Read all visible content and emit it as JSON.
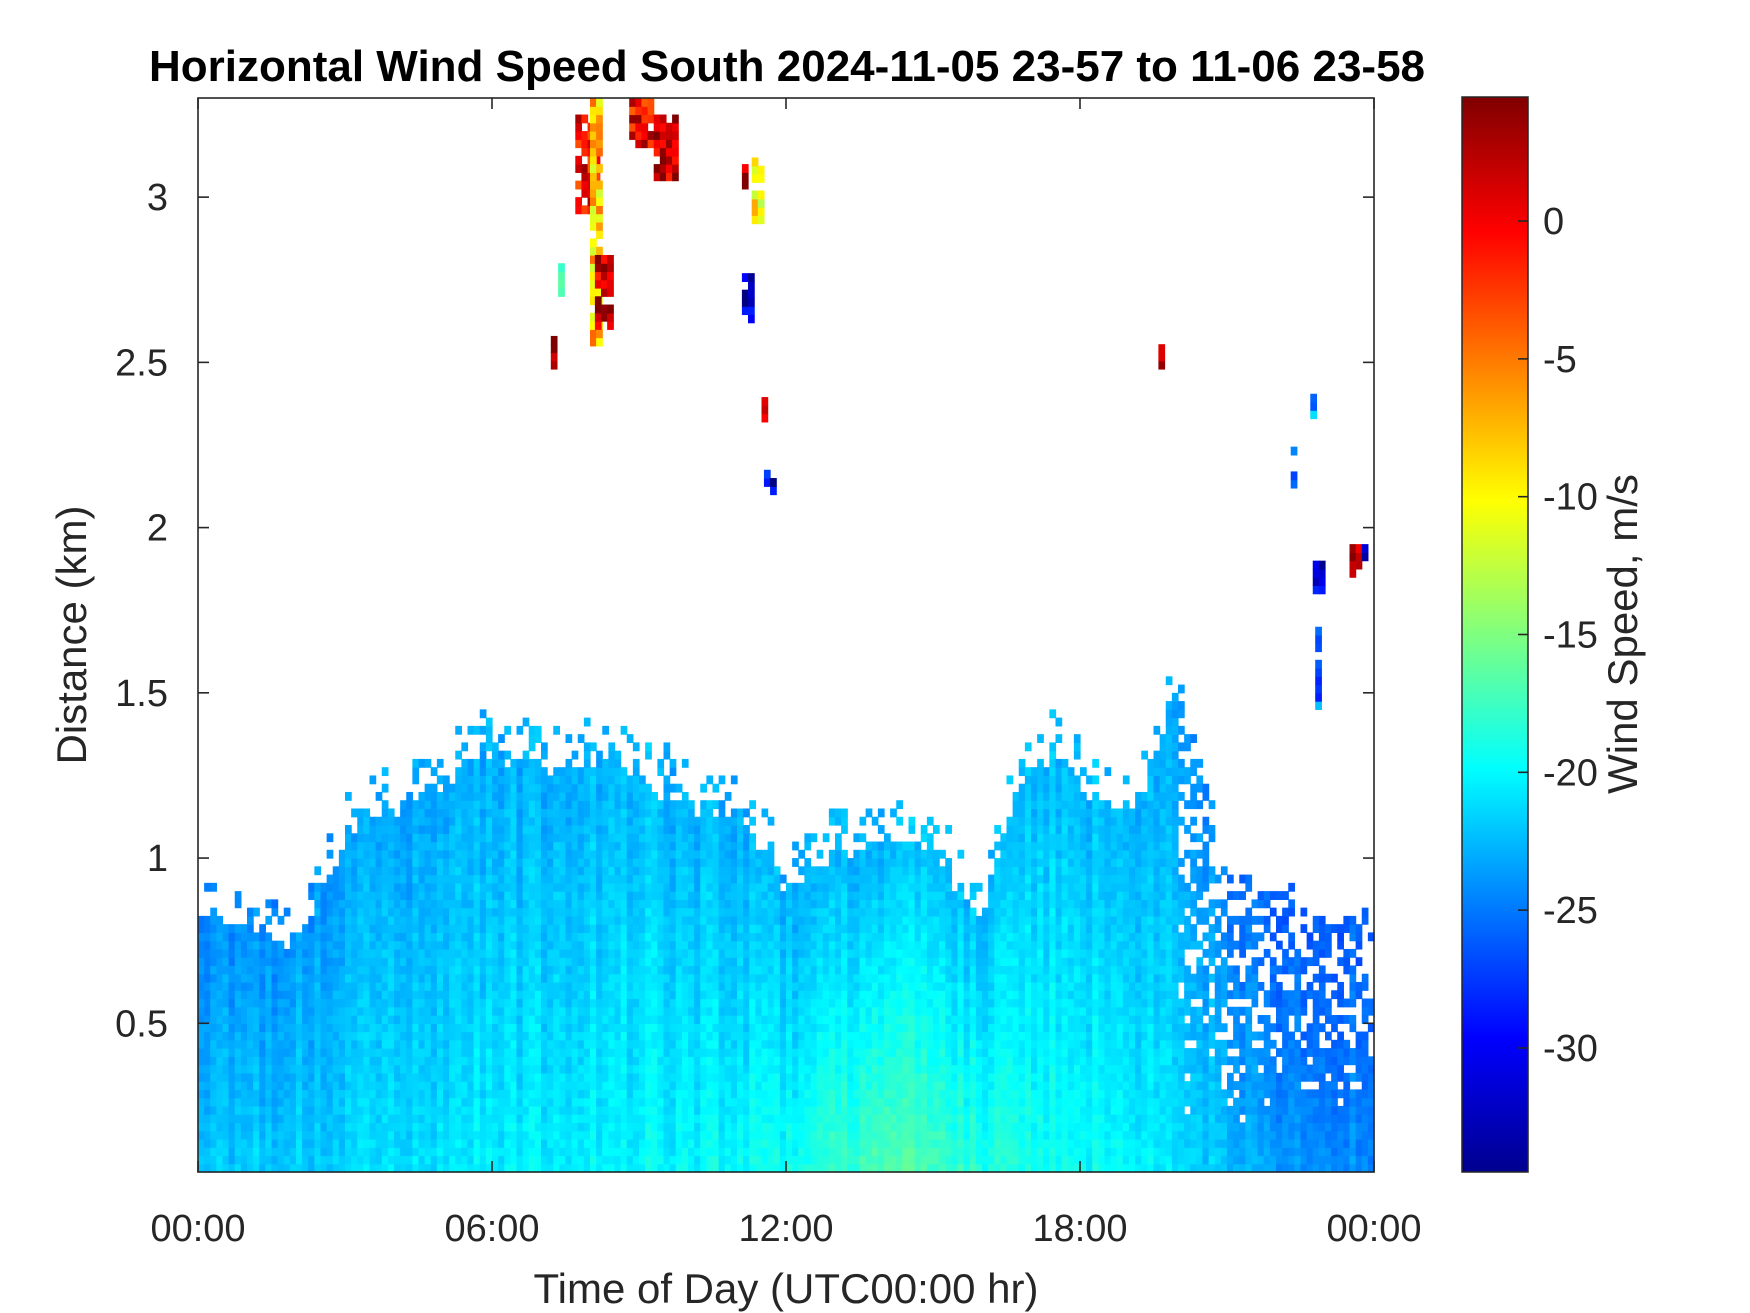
{
  "chart_data": {
    "type": "heatmap",
    "title": "Horizontal Wind Speed South 2024-11-05 23-57 to 11-06 23-58",
    "xlabel": "Time of Day (UTC00:00 hr)",
    "ylabel": "Distance (km)",
    "x_unit": "hours",
    "xlim": [
      0,
      24
    ],
    "ylim": [
      0.05,
      3.3
    ],
    "x_ticks": [
      0,
      6,
      12,
      18,
      24
    ],
    "x_tick_labels": [
      "00:00",
      "06:00",
      "12:00",
      "18:00",
      "00:00"
    ],
    "y_ticks": [
      0.5,
      1,
      1.5,
      2,
      2.5,
      3
    ],
    "y_tick_labels": [
      "0.5",
      "1",
      "1.5",
      "2",
      "2.5",
      "3"
    ],
    "grid": false,
    "colormap": "jet",
    "colorbar": {
      "label": "Wind Speed, m/s",
      "clim": [
        -34.5,
        4.5
      ],
      "ticks": [
        0,
        -5,
        -10,
        -15,
        -20,
        -25,
        -30
      ],
      "tick_labels": [
        "0",
        "-5",
        "-10",
        "-15",
        "-20",
        "-25",
        "-30"
      ]
    },
    "resolution": {
      "x_step_hr": 0.125,
      "y_step_km": 0.025
    },
    "boundary_layer_top_km": {
      "x": [
        0,
        1.2,
        1.8,
        2.5,
        3.2,
        4,
        5,
        5.5,
        6,
        6.5,
        7.2,
        8,
        8.5,
        9,
        10,
        11,
        12,
        13,
        14,
        15,
        16,
        16.5,
        17,
        17.5,
        18,
        19,
        20,
        21,
        22,
        23,
        24
      ],
      "y": [
        0.82,
        0.8,
        0.76,
        0.88,
        1.08,
        1.15,
        1.22,
        1.3,
        1.33,
        1.3,
        1.27,
        1.28,
        1.32,
        1.25,
        1.15,
        1.15,
        0.92,
        1.02,
        1.05,
        1.0,
        0.82,
        1.12,
        1.25,
        1.32,
        1.22,
        1.1,
        1.5,
        0.85,
        0.85,
        0.72,
        0.72
      ]
    },
    "mean_speed_profile": {
      "x": [
        0,
        3,
        6,
        9,
        12,
        14,
        16,
        18,
        20,
        22,
        24
      ],
      "near_surface": [
        -22,
        -21.5,
        -20.5,
        -20,
        -19.5,
        -16.5,
        -18.5,
        -19.5,
        -21,
        -23.5,
        -24.5
      ],
      "near_top": [
        -24.5,
        -23.5,
        -23,
        -22.5,
        -23,
        -22.5,
        -22.5,
        -22.5,
        -23.5,
        -26,
        -26
      ]
    },
    "sparse_region": {
      "x_start": 20,
      "x_end": 24,
      "fill_fraction_at_top": 0.4
    },
    "isolated_features": [
      {
        "x": [
          7.2,
          7.3
        ],
        "y": [
          2.48,
          2.57
        ],
        "speed": 2
      },
      {
        "x": [
          7.35,
          7.45
        ],
        "y": [
          2.7,
          2.8
        ],
        "speed": -18
      },
      {
        "x": [
          7.7,
          8.2
        ],
        "y": [
          2.95,
          3.25
        ],
        "speed": 0
      },
      {
        "x": [
          8.0,
          8.2
        ],
        "y": [
          2.55,
          3.28
        ],
        "speed": -8
      },
      {
        "x": [
          8.1,
          8.4
        ],
        "y": [
          2.6,
          2.82
        ],
        "speed": 2
      },
      {
        "x": [
          8.8,
          9.3
        ],
        "y": [
          3.15,
          3.3
        ],
        "speed": 0
      },
      {
        "x": [
          9.3,
          9.8
        ],
        "y": [
          3.05,
          3.25
        ],
        "speed": 2
      },
      {
        "x": [
          11.1,
          11.2
        ],
        "y": [
          3.0,
          3.1
        ],
        "speed": 2
      },
      {
        "x": [
          11.3,
          11.45
        ],
        "y": [
          2.92,
          3.1
        ],
        "speed": -10
      },
      {
        "x": [
          11.1,
          11.3
        ],
        "y": [
          2.62,
          2.75
        ],
        "speed": -31
      },
      {
        "x": [
          11.5,
          11.6
        ],
        "y": [
          2.32,
          2.38
        ],
        "speed": 3
      },
      {
        "x": [
          11.55,
          11.7
        ],
        "y": [
          2.1,
          2.17
        ],
        "speed": -31
      },
      {
        "x": [
          19.6,
          19.7
        ],
        "y": [
          2.48,
          2.58
        ],
        "speed": 1
      },
      {
        "x": [
          22.3,
          22.4
        ],
        "y": [
          2.12,
          2.23
        ],
        "speed": -28
      },
      {
        "x": [
          22.7,
          22.8
        ],
        "y": [
          2.33,
          2.39
        ],
        "speed": -23
      },
      {
        "x": [
          22.75,
          22.9
        ],
        "y": [
          1.8,
          1.88
        ],
        "speed": -31
      },
      {
        "x": [
          22.8,
          22.9
        ],
        "y": [
          1.45,
          1.7
        ],
        "speed": -25
      },
      {
        "x": [
          23.5,
          23.7
        ],
        "y": [
          1.85,
          1.95
        ],
        "speed": 3
      },
      {
        "x": [
          23.75,
          23.8
        ],
        "y": [
          1.9,
          1.97
        ],
        "speed": -31
      }
    ]
  }
}
